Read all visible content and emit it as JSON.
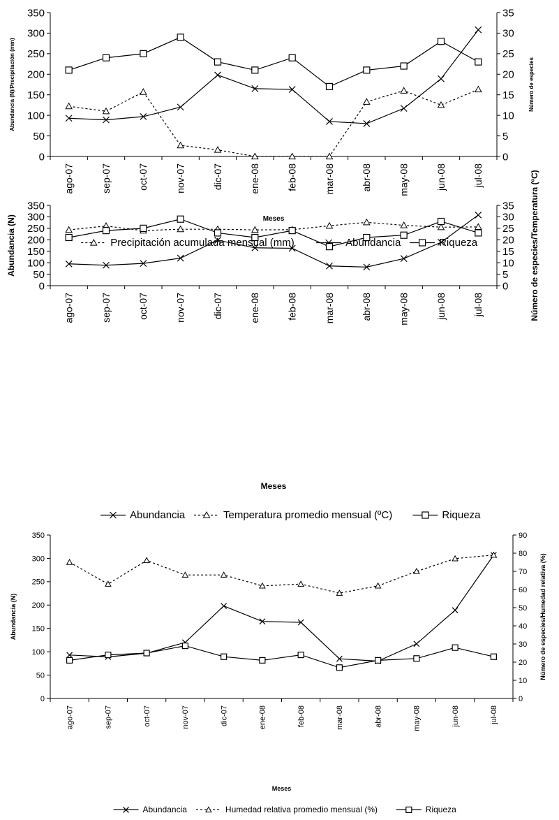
{
  "chart_data": [
    {
      "type": "line",
      "categories": [
        "ago-07",
        "sep-07",
        "oct-07",
        "nov-07",
        "dic-07",
        "ene-08",
        "feb-08",
        "mar-08",
        "abr-08",
        "may-08",
        "jun-08",
        "jul-08"
      ],
      "xlabel": "Meses",
      "ylabel": "Abundancia (N)/Precipitación (mm)",
      "y2label": "Número de especies",
      "ylim": [
        0,
        350
      ],
      "y2lim": [
        0,
        35
      ],
      "yticks": [
        0,
        50,
        100,
        150,
        200,
        250,
        300,
        350
      ],
      "y2ticks": [
        0,
        5,
        10,
        15,
        20,
        25,
        30,
        35
      ],
      "series": [
        {
          "name": "Precipitación acumulada mensual (mm)",
          "axis": "left",
          "style": "dotted",
          "marker": "triangle",
          "values": [
            122,
            110,
            157,
            27,
            16,
            0,
            0,
            0,
            133,
            160,
            125,
            163
          ]
        },
        {
          "name": "Abundancia",
          "axis": "left",
          "style": "solid",
          "marker": "x",
          "values": [
            93,
            89,
            97,
            120,
            198,
            165,
            163,
            85,
            80,
            117,
            189,
            308
          ]
        },
        {
          "name": "Riqueza",
          "axis": "right",
          "style": "solid",
          "marker": "square",
          "values": [
            21,
            24,
            25,
            29,
            23,
            21,
            24,
            17,
            21,
            22,
            28,
            23
          ]
        }
      ],
      "legend_order": [
        "Precipitación acumulada mensual (mm)",
        "Abundancia",
        "Riqueza"
      ]
    },
    {
      "type": "line",
      "categories": [
        "ago-07",
        "sep-07",
        "oct-07",
        "nov-07",
        "dic-07",
        "ene-08",
        "feb-08",
        "mar-08",
        "abr-08",
        "may-08",
        "jun-08",
        "jul-08"
      ],
      "xlabel": "Meses",
      "ylabel": "Abundancia (N)",
      "y2label": "Número de especies/Temperatura (ºC)",
      "ylim": [
        0,
        350
      ],
      "y2lim": [
        0,
        35
      ],
      "yticks": [
        0,
        50,
        100,
        150,
        200,
        250,
        300,
        350
      ],
      "y2ticks": [
        0,
        5,
        10,
        15,
        20,
        25,
        30,
        35
      ],
      "series": [
        {
          "name": "Abundancia",
          "axis": "left",
          "style": "solid",
          "marker": "x",
          "values": [
            95,
            89,
            97,
            120,
            198,
            165,
            163,
            86,
            81,
            118,
            189,
            308
          ]
        },
        {
          "name": "Temperatura promedio mensual (ºC)",
          "axis": "right",
          "style": "dotted",
          "marker": "triangle",
          "values": [
            24.3,
            26,
            24,
            24.6,
            24.6,
            24.3,
            24.4,
            26.1,
            27.6,
            26.3,
            25.5,
            25.6
          ]
        },
        {
          "name": "Riqueza",
          "axis": "right",
          "style": "solid",
          "marker": "square",
          "values": [
            21,
            24,
            25,
            29,
            23,
            21,
            24,
            17,
            21,
            22,
            28,
            23
          ]
        }
      ],
      "legend_order": [
        "Abundancia",
        "Temperatura promedio mensual (ºC)",
        "Riqueza"
      ]
    },
    {
      "type": "line",
      "categories": [
        "ago-07",
        "sep-07",
        "oct-07",
        "nov-07",
        "dic-07",
        "ene-08",
        "feb-08",
        "mar-08",
        "abr-08",
        "may-08",
        "jun-08",
        "jul-08"
      ],
      "xlabel": "Meses",
      "ylabel": "Abundancia (N)",
      "y2label": "Número de especies/Humedad relativa (%)",
      "ylim": [
        0,
        350
      ],
      "y2lim": [
        0,
        90
      ],
      "yticks": [
        0,
        50,
        100,
        150,
        200,
        250,
        300,
        350
      ],
      "y2ticks": [
        0,
        10,
        20,
        30,
        40,
        50,
        60,
        70,
        80,
        90
      ],
      "series": [
        {
          "name": "Abundancia",
          "axis": "left",
          "style": "solid",
          "marker": "x",
          "values": [
            93,
            89,
            97,
            120,
            198,
            165,
            163,
            85,
            80,
            117,
            189,
            307
          ]
        },
        {
          "name": "Humedad relativa promedio mensual (%)",
          "axis": "right",
          "style": "dotted",
          "marker": "triangle",
          "values": [
            75,
            63,
            76,
            68,
            68,
            62,
            63,
            58,
            62,
            70,
            77,
            79
          ]
        },
        {
          "name": "Riqueza",
          "axis": "right",
          "style": "solid",
          "marker": "square",
          "values": [
            21,
            24,
            25,
            29,
            23,
            21,
            24,
            17,
            21,
            22,
            28,
            23
          ]
        }
      ],
      "legend_order": [
        "Abundancia",
        "Humedad relativa promedio mensual (%)",
        "Riqueza"
      ]
    }
  ]
}
